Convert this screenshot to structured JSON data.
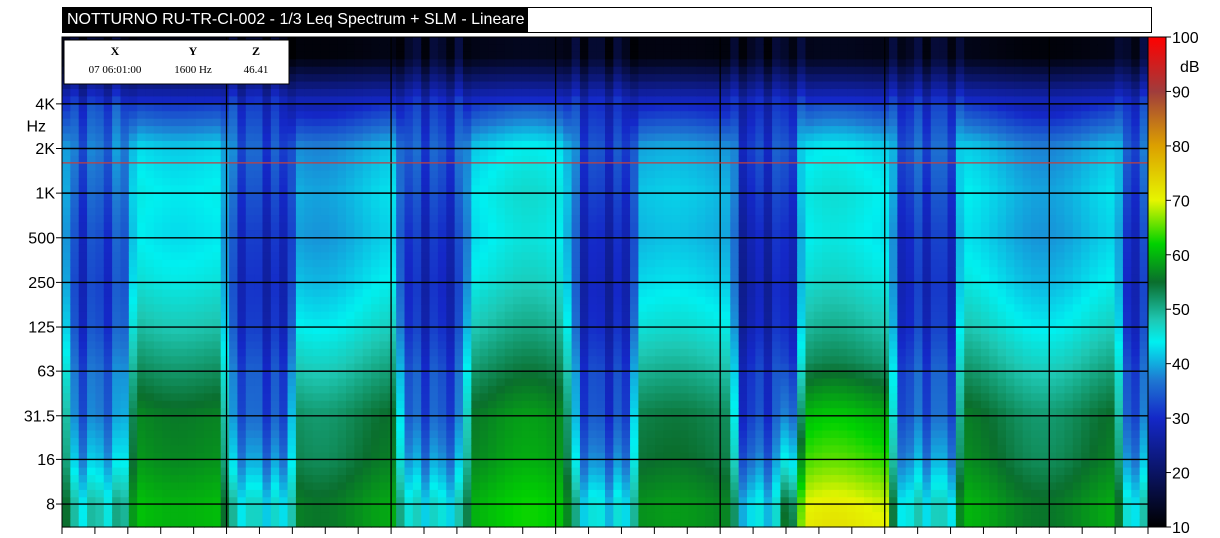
{
  "chart_data": {
    "type": "heatmap",
    "title": "NOTTURNO RU-TR-CI-002 - 1/3 Leq Spectrum + SLM - Lineare",
    "y_axis": {
      "scale": "log",
      "unit_label": "Hz",
      "ticks": [
        "4K",
        "2K",
        "1K",
        "500",
        "250",
        "125",
        "63",
        "31.5",
        "16",
        "8"
      ],
      "tick_values_hz": [
        4000,
        2000,
        1000,
        500,
        250,
        125,
        63,
        31.5,
        16,
        8
      ]
    },
    "x_axis": {
      "tick_count": 33,
      "labels_visible": false
    },
    "colorbar": {
      "unit": "dB",
      "range": [
        10,
        100
      ],
      "ticks": [
        100,
        90,
        80,
        70,
        60,
        50,
        40,
        30,
        20,
        10
      ],
      "stops": [
        {
          "db": 10,
          "color": "#000000"
        },
        {
          "db": 20,
          "color": "#0a1464"
        },
        {
          "db": 30,
          "color": "#1428c8"
        },
        {
          "db": 37,
          "color": "#1e78d2"
        },
        {
          "db": 44,
          "color": "#00f0f0"
        },
        {
          "db": 48,
          "color": "#1ec8b4"
        },
        {
          "db": 55,
          "color": "#0a6e2d"
        },
        {
          "db": 62,
          "color": "#00d200"
        },
        {
          "db": 70,
          "color": "#e6f500"
        },
        {
          "db": 80,
          "color": "#dca000"
        },
        {
          "db": 90,
          "color": "#a03c3c"
        },
        {
          "db": 100,
          "color": "#ff0000"
        }
      ]
    },
    "cursor": {
      "headers": [
        "X",
        "Y",
        "Z"
      ],
      "values": [
        "07 06:01:00",
        "1600 Hz",
        "46.41"
      ],
      "frequency_hz": 1600
    },
    "level_model": {
      "bands": [
        "8",
        "16",
        "31.5",
        "63",
        "125",
        "250",
        "500",
        "1K",
        "2K",
        "4K",
        "8K"
      ],
      "quiet_profile_db": [
        59,
        56,
        55,
        51,
        47,
        44,
        42,
        43,
        41,
        30,
        12
      ],
      "event_profile_db": [
        45,
        38,
        34,
        33,
        30,
        29,
        30,
        32,
        34,
        30,
        14
      ],
      "event_time_spans_fraction": [
        [
          0.012,
          0.055
        ],
        [
          0.158,
          0.205
        ],
        [
          0.318,
          0.365
        ],
        [
          0.475,
          0.52
        ],
        [
          0.625,
          0.675
        ],
        [
          0.77,
          0.82
        ],
        [
          0.98,
          1.0
        ]
      ],
      "low_frequency_boost_span_fraction": [
        0.66,
        0.76
      ],
      "low_frequency_boost_db": 9
    }
  }
}
